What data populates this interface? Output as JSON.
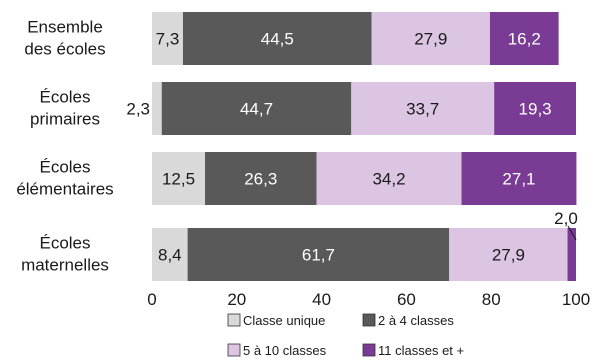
{
  "chart_data": {
    "type": "bar",
    "orientation": "horizontal",
    "stacked": true,
    "categories": [
      "Ensemble des écoles",
      "Écoles primaires",
      "Écoles élémentaires",
      "Écoles maternelles"
    ],
    "category_lines": [
      [
        "Ensemble",
        "des écoles"
      ],
      [
        "Écoles",
        "primaires"
      ],
      [
        "Écoles",
        "élémentaires"
      ],
      [
        "Écoles",
        "maternelles"
      ]
    ],
    "series": [
      {
        "name": "Classe unique",
        "values": [
          7.3,
          2.3,
          12.5,
          8.4
        ],
        "labels": [
          "7,3",
          "2,3",
          "12,5",
          "8,4"
        ],
        "color": "#d9d9d9"
      },
      {
        "name": "2 à 4 classes",
        "values": [
          44.5,
          44.7,
          26.3,
          61.7
        ],
        "labels": [
          "44,5",
          "44,7",
          "26,3",
          "61,7"
        ],
        "color": "#595959"
      },
      {
        "name": "5 à 10 classes",
        "values": [
          27.9,
          33.7,
          34.2,
          27.9
        ],
        "labels": [
          "27,9",
          "33,7",
          "34,2",
          "27,9"
        ],
        "color": "#dbc5e2"
      },
      {
        "name": "11 classes et +",
        "values": [
          16.2,
          19.3,
          27.1,
          2.0
        ],
        "labels": [
          "16,2",
          "19,3",
          "27,1",
          "2,0"
        ],
        "color": "#7a3b95"
      }
    ],
    "xlim": [
      0,
      100
    ],
    "xticks": [
      0,
      20,
      40,
      60,
      80,
      100
    ],
    "legend": "bottom",
    "grid": false
  }
}
